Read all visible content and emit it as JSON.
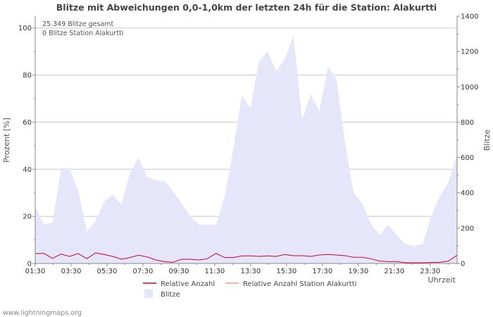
{
  "chart_data": {
    "type": "area",
    "title": "Blitze mit Abweichungen 0,0-1,0km der letzten 24h für die Station: Alakurtti",
    "ylabel_left": "Prozent   [%]",
    "ylabel_right": "Blitze",
    "xlabel": "Uhrzeit",
    "ylim_left": [
      0,
      105
    ],
    "yticks_left": [
      "0",
      "20",
      "40",
      "60",
      "80",
      "100"
    ],
    "ylim_right": [
      0,
      1400
    ],
    "yticks_right": [
      "0",
      "200",
      "400",
      "600",
      "800",
      "1000",
      "1200",
      "1400"
    ],
    "xticks": [
      "01:30",
      "03:30",
      "05:30",
      "07:30",
      "09:30",
      "11:30",
      "13:30",
      "15:30",
      "17:30",
      "19:30",
      "21:30",
      "23:30"
    ],
    "info_lines": [
      "25.349 Blitze gesamt",
      "0 Blitze Station Alakurtti"
    ],
    "series": [
      {
        "name": "Blitze",
        "axis": "right",
        "color": "#e6e6fa",
        "values": [
          320,
          225,
          230,
          540,
          540,
          410,
          180,
          240,
          350,
          390,
          335,
          510,
          600,
          490,
          470,
          465,
          410,
          340,
          270,
          220,
          220,
          220,
          380,
          650,
          950,
          880,
          1145,
          1200,
          1090,
          1160,
          1290,
          815,
          960,
          860,
          1115,
          1040,
          680,
          400,
          340,
          225,
          160,
          220,
          160,
          110,
          100,
          110,
          270,
          380,
          460,
          620
        ]
      },
      {
        "name": "Relative Anzahl",
        "axis": "left",
        "color": "#cc0033",
        "values": [
          4.2,
          4.3,
          2.2,
          4.0,
          3.0,
          4.2,
          2.0,
          4.5,
          3.8,
          3.0,
          1.8,
          2.5,
          3.5,
          2.8,
          1.5,
          0.8,
          0.5,
          1.8,
          1.8,
          1.5,
          2.0,
          4.3,
          2.5,
          2.5,
          3.2,
          3.2,
          3.0,
          3.2,
          3.0,
          3.8,
          3.3,
          3.3,
          3.0,
          3.6,
          3.8,
          3.6,
          3.3,
          2.6,
          2.6,
          2.0,
          1.0,
          0.8,
          0.8,
          0.3,
          0.3,
          0.3,
          0.4,
          0.5,
          1.0,
          3.5
        ]
      },
      {
        "name": "Relative Anzahl Station Alakurtti",
        "axis": "left",
        "color": "#ff9999",
        "values": [
          0,
          0,
          0,
          0,
          0,
          0,
          0,
          0,
          0,
          0,
          0,
          0,
          0,
          0,
          0,
          0,
          0,
          0,
          0,
          0,
          0,
          0,
          0,
          0,
          0,
          0,
          0,
          0,
          0,
          0,
          0,
          0,
          0,
          0,
          0,
          0,
          0,
          0,
          0,
          0,
          0,
          0,
          0,
          0,
          0,
          0,
          0,
          0,
          0,
          0
        ]
      }
    ],
    "legend": [
      {
        "label": "Relative Anzahl",
        "color": "#cc0033",
        "kind": "line"
      },
      {
        "label": "Relative Anzahl Station Alakurtti",
        "color": "#ff9999",
        "kind": "line"
      },
      {
        "label": "Blitze",
        "color": "#e6e6fa",
        "kind": "area"
      }
    ],
    "grid": true,
    "footer": "www.lightningmaps.org"
  }
}
